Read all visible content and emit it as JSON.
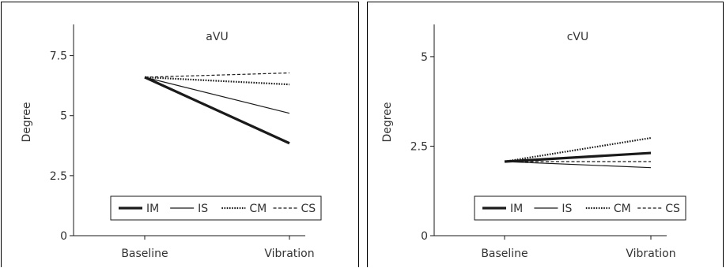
{
  "chart_data": [
    {
      "type": "line",
      "title": "aVU",
      "ylabel": "Degree",
      "xlabel": "",
      "categories": [
        "Baseline",
        "Vibration"
      ],
      "ylim": [
        0,
        8.8
      ],
      "yticks": [
        0,
        2.5,
        5,
        7.5
      ],
      "ytick_labels": [
        "0",
        "2.5",
        "5",
        "7.5"
      ],
      "series": [
        {
          "name": "IM",
          "values": [
            6.6,
            3.85
          ],
          "style": "solid-thick"
        },
        {
          "name": "IS",
          "values": [
            6.6,
            5.1
          ],
          "style": "solid-thin"
        },
        {
          "name": "CM",
          "values": [
            6.6,
            6.3
          ],
          "style": "dotted"
        },
        {
          "name": "CS",
          "values": [
            6.6,
            6.78
          ],
          "style": "dashed"
        }
      ],
      "legend": "bottom-center"
    },
    {
      "type": "line",
      "title": "cVU",
      "ylabel": "Degree",
      "xlabel": "",
      "categories": [
        "Baseline",
        "Vibration"
      ],
      "ylim": [
        0,
        5.9
      ],
      "yticks": [
        0,
        2.5,
        5
      ],
      "ytick_labels": [
        "0",
        "2.5",
        "5"
      ],
      "series": [
        {
          "name": "IM",
          "values": [
            2.07,
            2.31
          ],
          "style": "solid-thick"
        },
        {
          "name": "IS",
          "values": [
            2.07,
            1.9
          ],
          "style": "solid-thin"
        },
        {
          "name": "CM",
          "values": [
            2.07,
            2.73
          ],
          "style": "dotted"
        },
        {
          "name": "CS",
          "values": [
            2.07,
            2.07
          ],
          "style": "dashed"
        }
      ],
      "legend": "bottom-center"
    }
  ],
  "colors": {
    "line": "#1a1a1a",
    "text": "#333333"
  }
}
